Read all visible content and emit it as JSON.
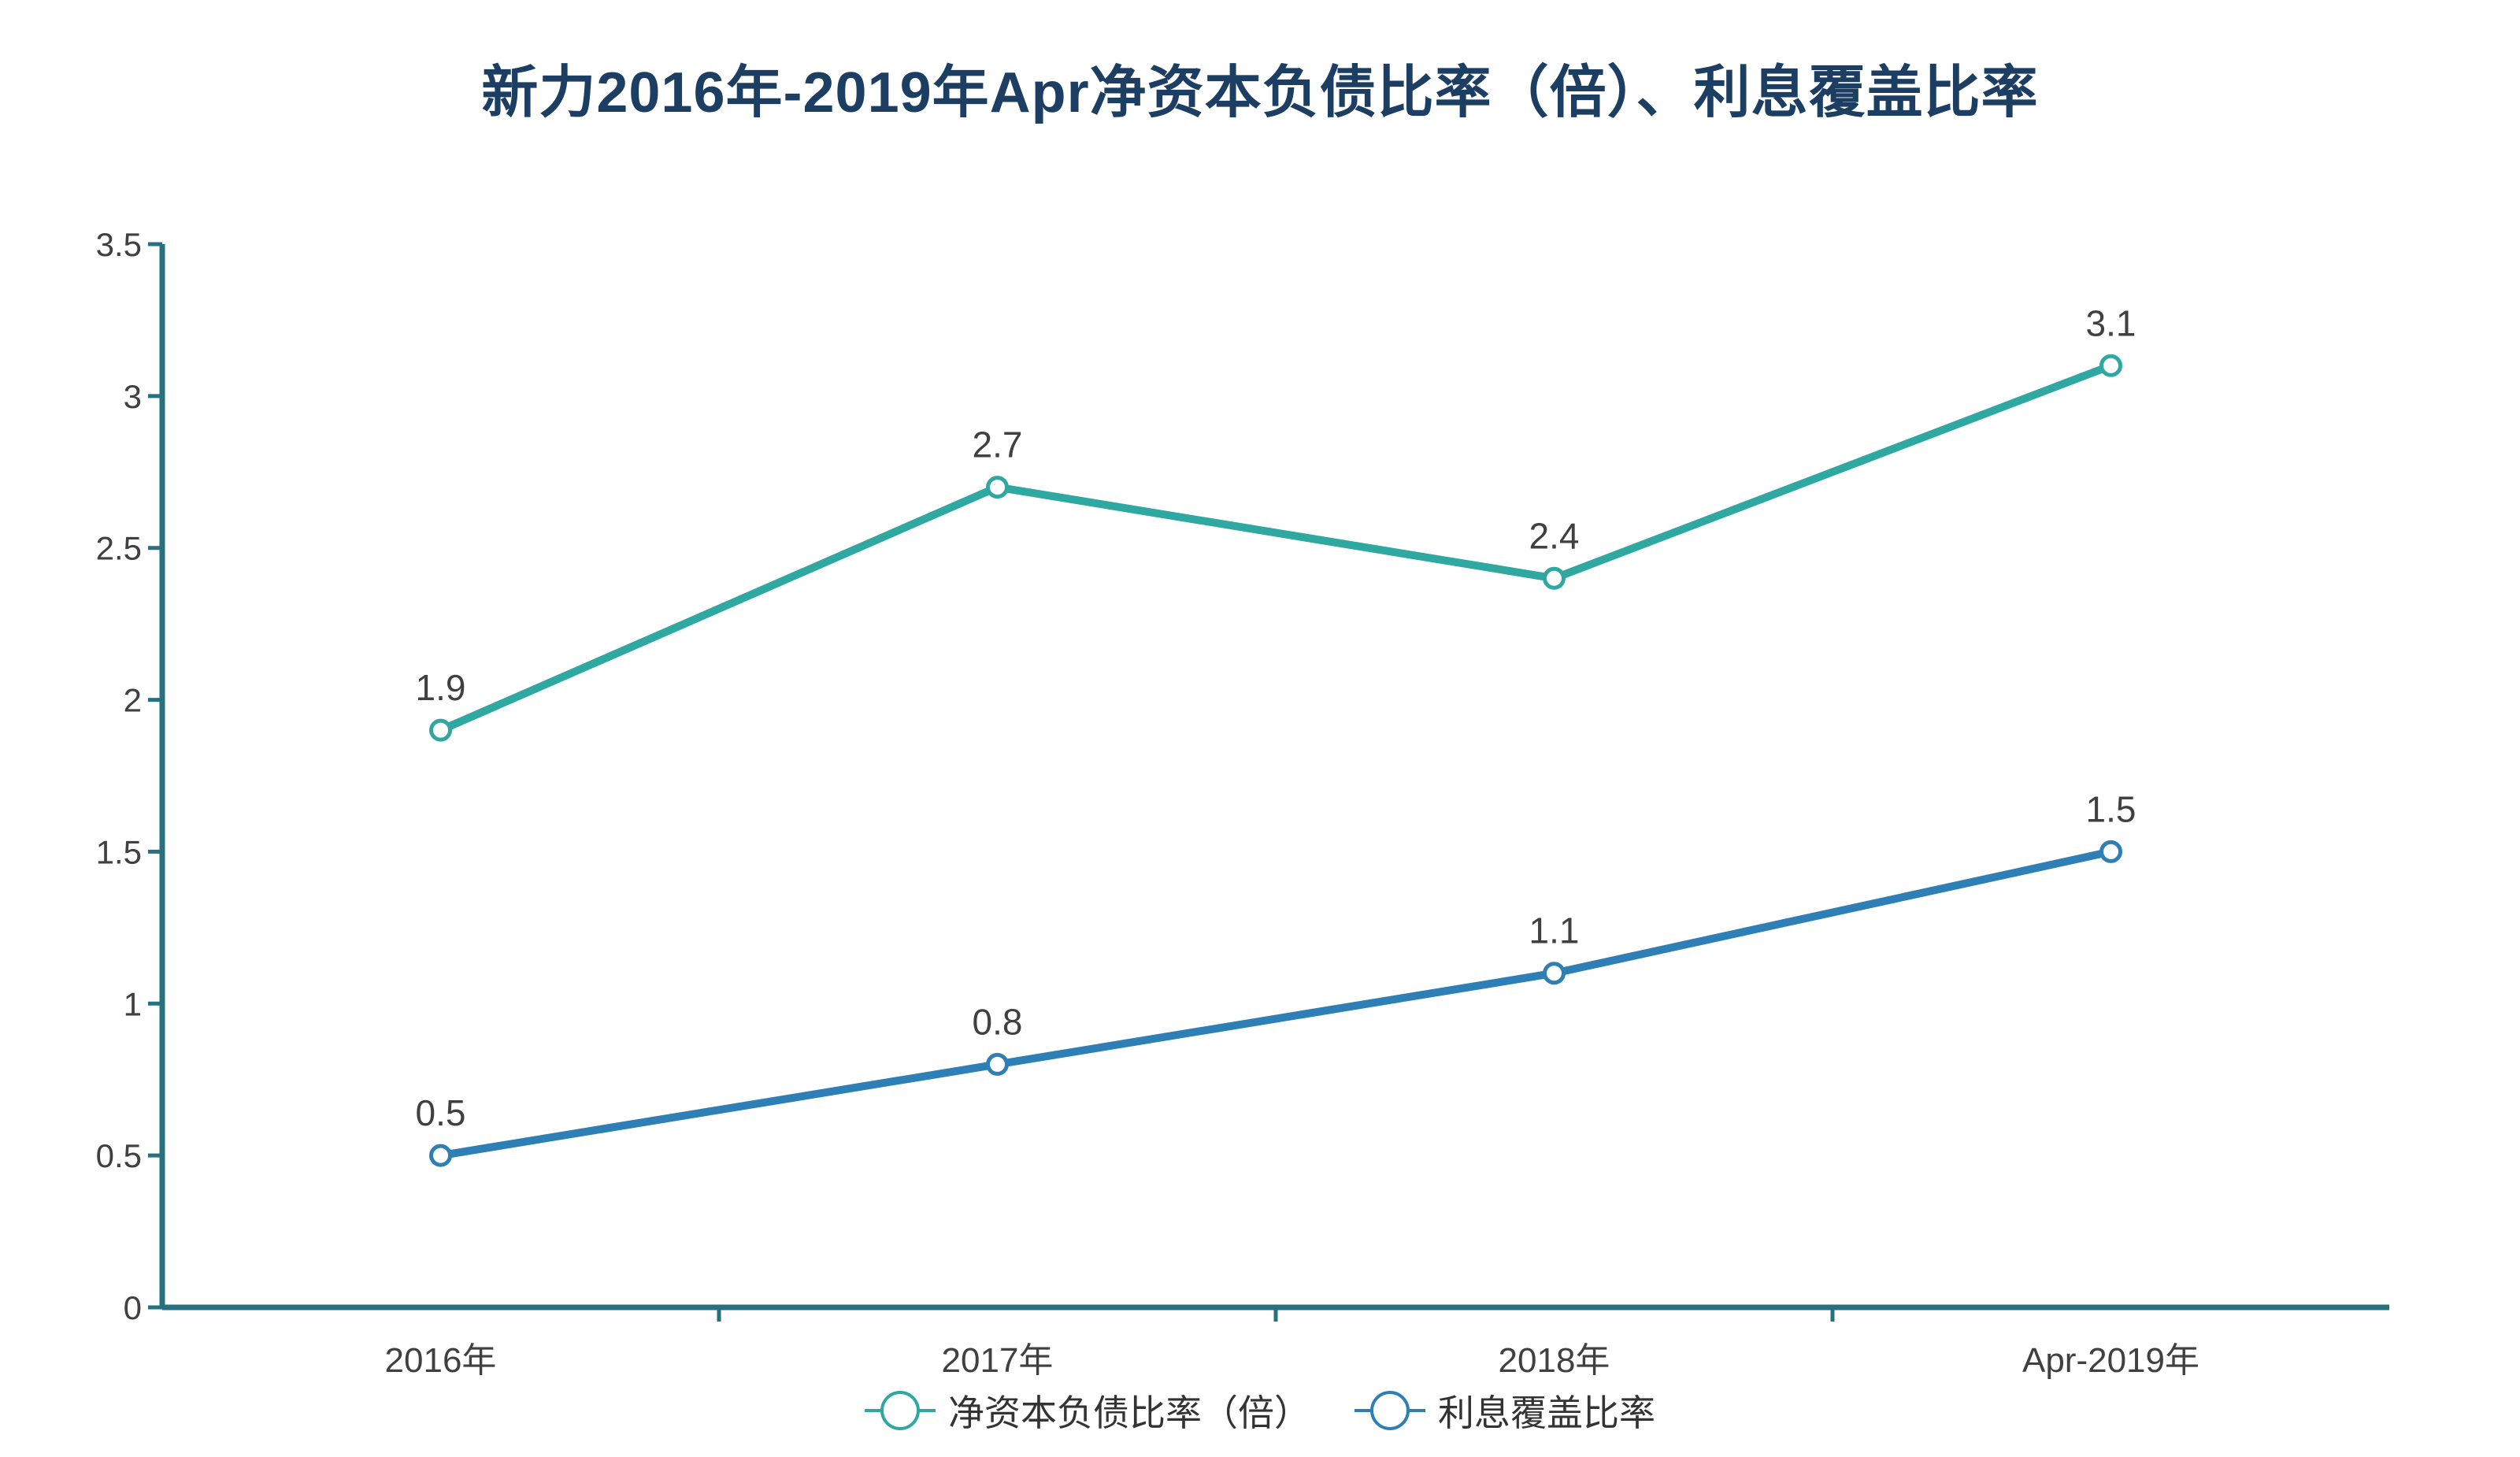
{
  "chart_data": {
    "type": "line",
    "title": "新力2016年-2019年Apr净资本负债比率（倍）、利息覆盖比率",
    "categories": [
      "2016年",
      "2017年",
      "2018年",
      "Apr-2019年"
    ],
    "series": [
      {
        "name": "净资本负债比率（倍）",
        "values": [
          1.9,
          2.7,
          2.4,
          3.1
        ],
        "color": "#2FA8A2"
      },
      {
        "name": "利息覆盖比率",
        "values": [
          0.5,
          0.8,
          1.1,
          1.5
        ],
        "color": "#2E7FB5"
      }
    ],
    "ylim": [
      0,
      3.5
    ],
    "yticks": [
      0,
      0.5,
      1,
      1.5,
      2,
      2.5,
      3,
      3.5
    ],
    "grid": false,
    "data_labels": true,
    "legend_position": "bottom",
    "marker": "open-circle",
    "colors": {
      "title": "#1D3E63",
      "axis": "#26707F",
      "tick_label": "#404040",
      "data_label": "#404040",
      "legend_text": "#333333",
      "marker_fill": "#FFFFFF",
      "background": "#FFFFFF"
    }
  }
}
